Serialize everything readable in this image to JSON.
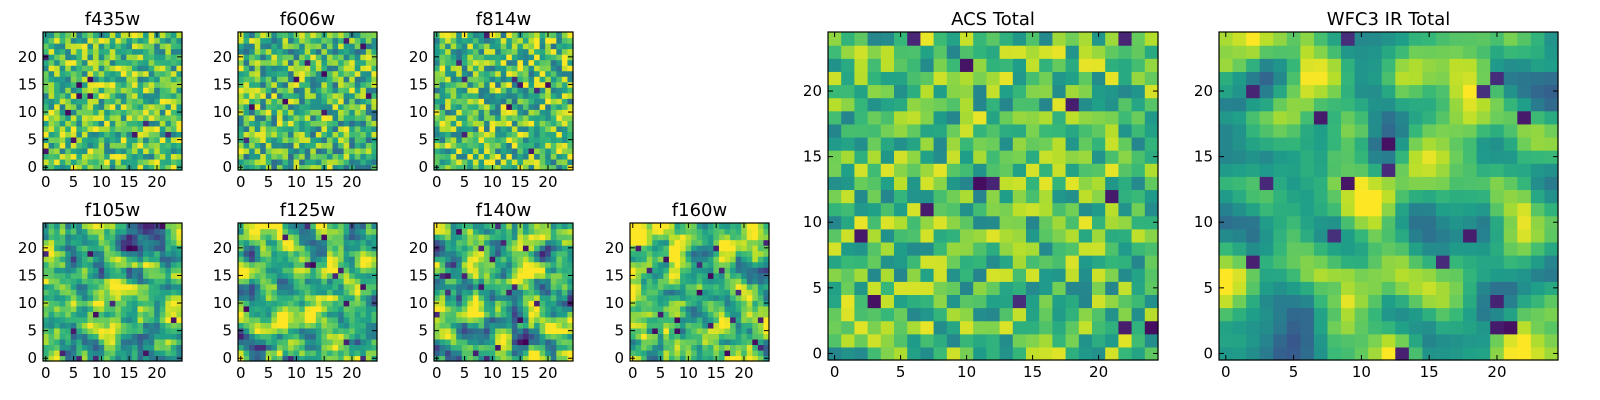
{
  "chart_data": [
    {
      "type": "heatmap",
      "title": "f435w",
      "xticks": [
        0,
        5,
        10,
        15,
        20
      ],
      "yticks": [
        0,
        5,
        10,
        15,
        20
      ],
      "xlim": [
        -0.5,
        24.5
      ],
      "ylim": [
        -0.5,
        24.5
      ],
      "size": 25,
      "colormap": "viridis",
      "grid": false,
      "smooth": 0,
      "seed": 11,
      "base": 0.72,
      "spread": 0.17
    },
    {
      "type": "heatmap",
      "title": "f606w",
      "xticks": [
        0,
        5,
        10,
        15,
        20
      ],
      "yticks": [
        0,
        5,
        10,
        15,
        20
      ],
      "xlim": [
        -0.5,
        24.5
      ],
      "ylim": [
        -0.5,
        24.5
      ],
      "size": 25,
      "colormap": "viridis",
      "grid": false,
      "smooth": 0,
      "seed": 23,
      "base": 0.68,
      "spread": 0.19
    },
    {
      "type": "heatmap",
      "title": "f814w",
      "xticks": [
        0,
        5,
        10,
        15,
        20
      ],
      "yticks": [
        0,
        5,
        10,
        15,
        20
      ],
      "xlim": [
        -0.5,
        24.5
      ],
      "ylim": [
        -0.5,
        24.5
      ],
      "size": 25,
      "colormap": "viridis",
      "grid": false,
      "smooth": 0,
      "seed": 37,
      "base": 0.7,
      "spread": 0.19
    },
    {
      "type": "heatmap",
      "title": "f105w",
      "xticks": [
        0,
        5,
        10,
        15,
        20
      ],
      "yticks": [
        0,
        5,
        10,
        15,
        20
      ],
      "xlim": [
        -0.5,
        24.5
      ],
      "ylim": [
        -0.5,
        24.5
      ],
      "size": 25,
      "colormap": "viridis",
      "grid": false,
      "smooth": 1,
      "seed": 41,
      "base": 0.64,
      "spread": 0.2
    },
    {
      "type": "heatmap",
      "title": "f125w",
      "xticks": [
        0,
        5,
        10,
        15,
        20
      ],
      "yticks": [
        0,
        5,
        10,
        15,
        20
      ],
      "xlim": [
        -0.5,
        24.5
      ],
      "ylim": [
        -0.5,
        24.5
      ],
      "size": 25,
      "colormap": "viridis",
      "grid": false,
      "smooth": 1,
      "seed": 53,
      "base": 0.68,
      "spread": 0.2
    },
    {
      "type": "heatmap",
      "title": "f140w",
      "xticks": [
        0,
        5,
        10,
        15,
        20
      ],
      "yticks": [
        0,
        5,
        10,
        15,
        20
      ],
      "xlim": [
        -0.5,
        24.5
      ],
      "ylim": [
        -0.5,
        24.5
      ],
      "size": 25,
      "colormap": "viridis",
      "grid": false,
      "smooth": 1,
      "seed": 67,
      "base": 0.66,
      "spread": 0.22
    },
    {
      "type": "heatmap",
      "title": "f160w",
      "xticks": [
        0,
        5,
        10,
        15,
        20
      ],
      "yticks": [
        0,
        5,
        10,
        15,
        20
      ],
      "xlim": [
        -0.5,
        24.5
      ],
      "ylim": [
        -0.5,
        24.5
      ],
      "size": 25,
      "colormap": "viridis",
      "grid": false,
      "smooth": 1,
      "seed": 79,
      "base": 0.72,
      "spread": 0.18
    },
    {
      "type": "heatmap",
      "title": "ACS Total",
      "xticks": [
        0,
        5,
        10,
        15,
        20
      ],
      "yticks": [
        0,
        5,
        10,
        15,
        20
      ],
      "xlim": [
        -0.5,
        24.5
      ],
      "ylim": [
        -0.5,
        24.5
      ],
      "size": 25,
      "colormap": "viridis",
      "grid": false,
      "smooth": 0,
      "seed": 97,
      "base": 0.71,
      "spread": 0.15
    },
    {
      "type": "heatmap",
      "title": "WFC3 IR Total",
      "xticks": [
        0,
        5,
        10,
        15,
        20
      ],
      "yticks": [
        0,
        5,
        10,
        15,
        20
      ],
      "xlim": [
        -0.5,
        24.5
      ],
      "ylim": [
        -0.5,
        24.5
      ],
      "size": 25,
      "colormap": "viridis",
      "grid": false,
      "smooth": 2,
      "seed": 113,
      "base": 0.66,
      "spread": 0.16
    }
  ]
}
